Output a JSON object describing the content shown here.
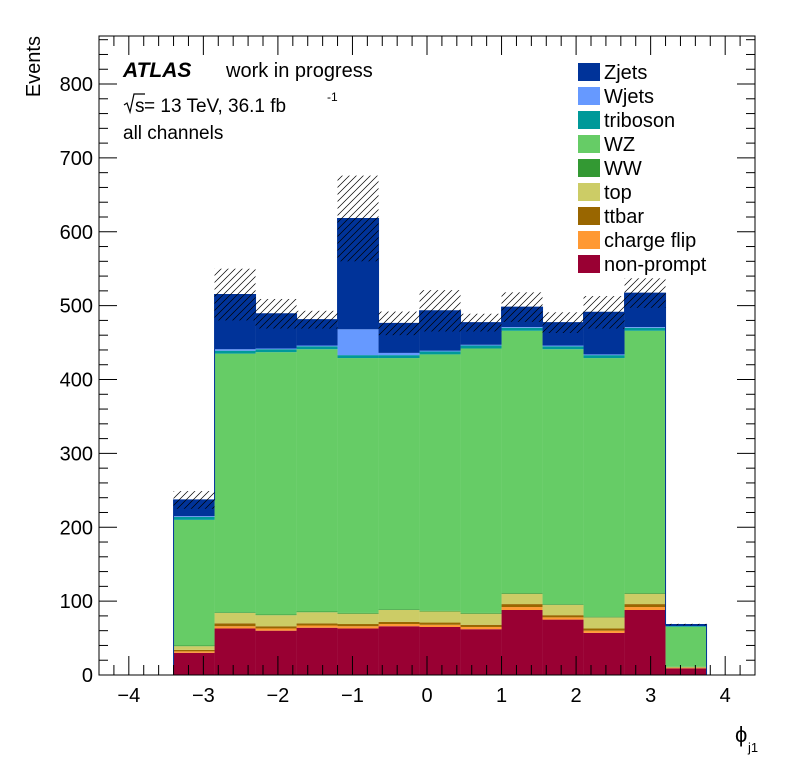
{
  "chart_data": {
    "type": "bar",
    "stacked": true,
    "annotation": {
      "experiment": "ATLAS",
      "status": "work in progress",
      "energy_prefix": "s",
      "energy_text": " = 13 TeV, 36.1 fb",
      "lumi_exp": "-1",
      "channel": "all channels"
    },
    "xlabel": {
      "symbol": "ϕ",
      "sub": "j1"
    },
    "ylabel": "Events",
    "xlim": [
      -4.4,
      4.4
    ],
    "ylim": [
      0,
      865
    ],
    "xticks": [
      -4,
      -3,
      -2,
      -1,
      0,
      1,
      2,
      3,
      4
    ],
    "xtick_labels": [
      "−4",
      "−3",
      "−2",
      "−1",
      "0",
      "1",
      "2",
      "3",
      "4"
    ],
    "yticks": [
      0,
      100,
      200,
      300,
      400,
      500,
      600,
      700,
      800
    ],
    "bin_edges": [
      -3.4,
      -2.85,
      -2.3,
      -1.75,
      -1.2,
      -0.65,
      -0.1,
      0.45,
      1.0,
      1.55,
      2.1,
      2.65,
      3.2,
      3.75
    ],
    "series": [
      {
        "name": "non-prompt",
        "color": "#990033",
        "values": [
          30,
          63,
          60,
          64,
          63,
          66,
          65,
          62,
          88,
          75,
          57,
          88,
          9
        ]
      },
      {
        "name": "charge flip",
        "color": "#ff9933",
        "values": [
          2,
          3,
          3,
          3,
          3,
          3,
          3,
          3,
          4,
          3,
          3,
          4,
          0.5
        ]
      },
      {
        "name": "ttbar",
        "color": "#996600",
        "values": [
          2,
          4,
          3,
          3,
          3,
          3,
          3,
          3,
          4,
          3,
          3,
          4,
          0.5
        ]
      },
      {
        "name": "top",
        "color": "#cccc66",
        "values": [
          5,
          14,
          15,
          15,
          14,
          16,
          15,
          15,
          14,
          14,
          15,
          14,
          1
        ]
      },
      {
        "name": "WW",
        "color": "#339933",
        "values": [
          1,
          1,
          1,
          1,
          1,
          1,
          1,
          1,
          1,
          1,
          1,
          1,
          0.3
        ]
      },
      {
        "name": "WZ",
        "color": "#66cc66",
        "values": [
          170,
          350,
          355,
          355,
          345,
          340,
          347,
          358,
          355,
          345,
          350,
          355,
          54
        ]
      },
      {
        "name": "triboson",
        "color": "#009999",
        "values": [
          4,
          4,
          4,
          4,
          4,
          4,
          4,
          4,
          4,
          4,
          4,
          4,
          1
        ]
      },
      {
        "name": "Wjets",
        "color": "#6699ff",
        "values": [
          1,
          2,
          1,
          1,
          35,
          3,
          1,
          1,
          1,
          1,
          1,
          1,
          0
        ]
      },
      {
        "name": "Zjets",
        "color": "#003399",
        "values": [
          22,
          74,
          47,
          35,
          150,
          40,
          54,
          30,
          27,
          31,
          57,
          46,
          2
        ]
      }
    ],
    "uncertainty": [
      12,
      35,
      20,
      12,
      58,
      16,
      28,
      12,
      20,
      14,
      22,
      20,
      1
    ],
    "legend": {
      "position": "top-right",
      "entries": [
        {
          "label": "Zjets",
          "color": "#003399"
        },
        {
          "label": "Wjets",
          "color": "#6699ff"
        },
        {
          "label": "triboson",
          "color": "#009999"
        },
        {
          "label": "WZ",
          "color": "#66cc66"
        },
        {
          "label": "WW",
          "color": "#339933"
        },
        {
          "label": "top",
          "color": "#cccc66"
        },
        {
          "label": "ttbar",
          "color": "#996600"
        },
        {
          "label": "charge flip",
          "color": "#ff9933"
        },
        {
          "label": "non-prompt",
          "color": "#990033"
        }
      ]
    }
  }
}
